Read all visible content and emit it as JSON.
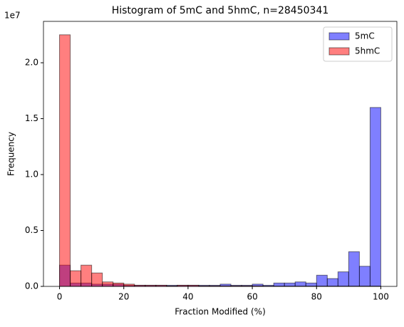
{
  "chart_data": {
    "type": "histogram",
    "title": "Histogram of 5mC and 5hmC, n=28450341",
    "x_label": "Fraction Modified (%)",
    "y_label": "Frequency",
    "y_offset_label": "1e7",
    "bins": [
      0,
      3.3333333333333335,
      6.666666666666667,
      10,
      13.333333333333334,
      16.666666666666668,
      20,
      23.333333333333336,
      26.666666666666668,
      30,
      33.333333333333336,
      36.66666666666667,
      40,
      43.333333333333336,
      46.66666666666667,
      50,
      53.333333333333336,
      56.66666666666667,
      60,
      63.333333333333336,
      66.66666666666667,
      70,
      73.33333333333334,
      76.66666666666667,
      80,
      83.33333333333334,
      86.66666666666667,
      90,
      93.33333333333334,
      96.66666666666667,
      100
    ],
    "series": [
      {
        "name": "5mC",
        "color": "rgba(0,0,255,0.5)",
        "values": [
          0.19,
          0.03,
          0.03,
          0.02,
          0.02,
          0.02,
          0.01,
          0.01,
          0.01,
          0.01,
          0.01,
          0.01,
          0.01,
          0.01,
          0.01,
          0.02,
          0.01,
          0.01,
          0.02,
          0.01,
          0.03,
          0.03,
          0.04,
          0.03,
          0.1,
          0.07,
          0.13,
          0.31,
          0.18,
          1.6
        ]
      },
      {
        "name": "5hmC",
        "color": "rgba(255,0,0,0.5)",
        "values": [
          2.25,
          0.14,
          0.19,
          0.12,
          0.04,
          0.03,
          0.02,
          0.01,
          0.01,
          0.01,
          0.005,
          0.01,
          0.01,
          0.005,
          0.005,
          0.005,
          0.005,
          0.005,
          0.005,
          0.003,
          0.003,
          0.003,
          0.003,
          0.003,
          0.003,
          0.003,
          0.003,
          0.003,
          0.003,
          0.003
        ]
      }
    ],
    "xlim": [
      -5,
      105
    ],
    "xticks": [
      0,
      20,
      40,
      60,
      80,
      100
    ],
    "ylim": [
      0,
      2.37
    ],
    "yticks": [
      {
        "value": 0,
        "label": "0.0"
      },
      0.5,
      {
        "value": 1,
        "label": "1.0"
      },
      1.5,
      {
        "value": 2,
        "label": "2.0"
      }
    ],
    "legend": "upper right"
  }
}
